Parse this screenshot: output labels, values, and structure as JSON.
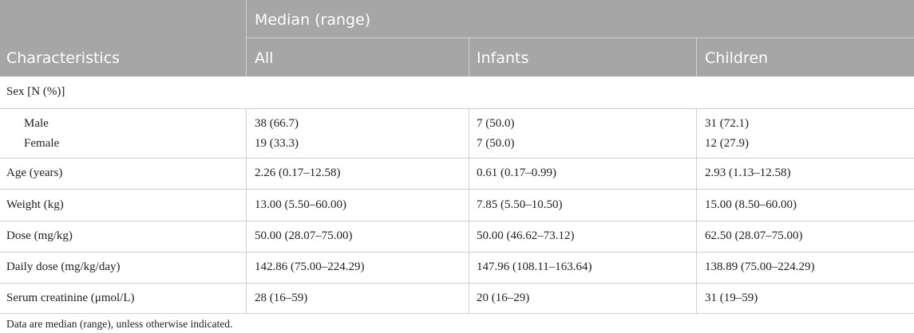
{
  "header": {
    "group_label": "Median (range)",
    "col_characteristics": "Characteristics",
    "col_all": "All",
    "col_infants": "Infants",
    "col_children": "Children"
  },
  "sex_section": {
    "label": "Sex [N (%)]"
  },
  "sex_rows": [
    {
      "label": "Male",
      "all": "38 (66.7)",
      "infants": "7 (50.0)",
      "children": "31 (72.1)"
    },
    {
      "label": "Female",
      "all": "19 (33.3)",
      "infants": "7 (50.0)",
      "children": "12 (27.9)"
    }
  ],
  "rows": [
    {
      "label": "Age (years)",
      "all": "2.26 (0.17–12.58)",
      "infants": "0.61 (0.17–0.99)",
      "children": "2.93 (1.13–12.58)"
    },
    {
      "label": "Weight (kg)",
      "all": "13.00 (5.50–60.00)",
      "infants": "7.85 (5.50–10.50)",
      "children": "15.00 (8.50–60.00)"
    },
    {
      "label": "Dose (mg/kg)",
      "all": "50.00 (28.07–75.00)",
      "infants": "50.00 (46.62–73.12)",
      "children": "62.50 (28.07–75.00)"
    },
    {
      "label": "Daily dose (mg/kg/day)",
      "all": "142.86 (75.00–224.29)",
      "infants": "147.96 (108.11–163.64)",
      "children": "138.89 (75.00–224.29)"
    },
    {
      "label": "Serum creatinine (μmol/L)",
      "all": "28 (16–59)",
      "infants": "20 (16–29)",
      "children": "31 (19–59)"
    }
  ],
  "footnote": "Data are median (range), unless otherwise indicated.",
  "colors": {
    "header_bg": "#a6a6a6",
    "header_text": "#ffffff",
    "border": "#d0d0d0"
  }
}
